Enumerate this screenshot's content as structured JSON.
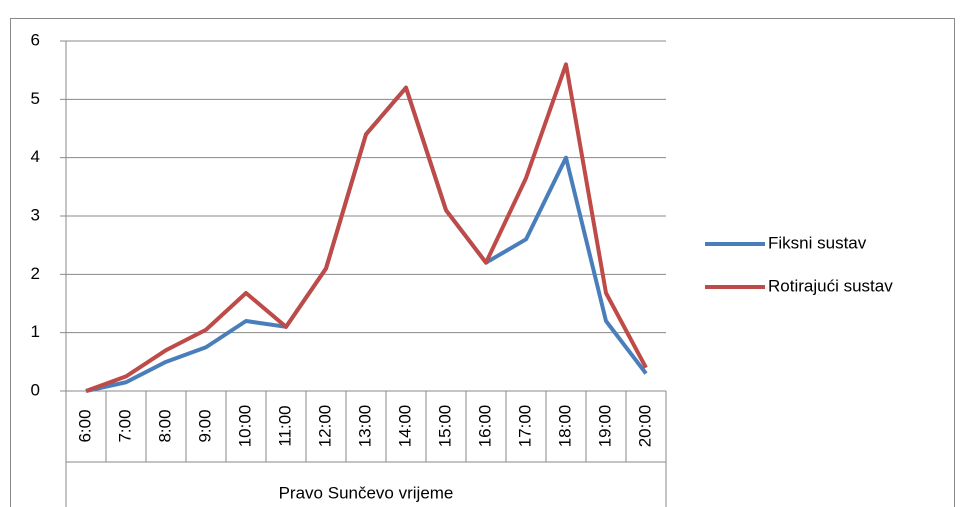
{
  "chart_data": {
    "type": "line",
    "x_label": "Pravo Sunčevo vrijeme",
    "categories": [
      "6:00",
      "7:00",
      "8:00",
      "9:00",
      "10:00",
      "11:00",
      "12:00",
      "13:00",
      "14:00",
      "15:00",
      "16:00",
      "17:00",
      "18:00",
      "19:00",
      "20:00"
    ],
    "series": [
      {
        "name": "Fiksni sustav",
        "color": "#4a7ebb",
        "values": [
          0,
          0.15,
          0.5,
          0.75,
          1.2,
          1.1,
          2.1,
          4.4,
          5.2,
          3.1,
          2.2,
          2.6,
          4.0,
          1.2,
          0.3
        ]
      },
      {
        "name": "Rotirajući sustav",
        "color": "#be4b48",
        "values": [
          0,
          0.25,
          0.7,
          1.05,
          1.68,
          1.1,
          2.1,
          4.4,
          5.2,
          3.1,
          2.2,
          3.65,
          5.6,
          1.68,
          0.4
        ]
      }
    ],
    "ylim": [
      0,
      6
    ],
    "yticks": [
      0,
      1,
      2,
      3,
      4,
      5,
      6
    ],
    "grid": true,
    "legend": "right"
  }
}
